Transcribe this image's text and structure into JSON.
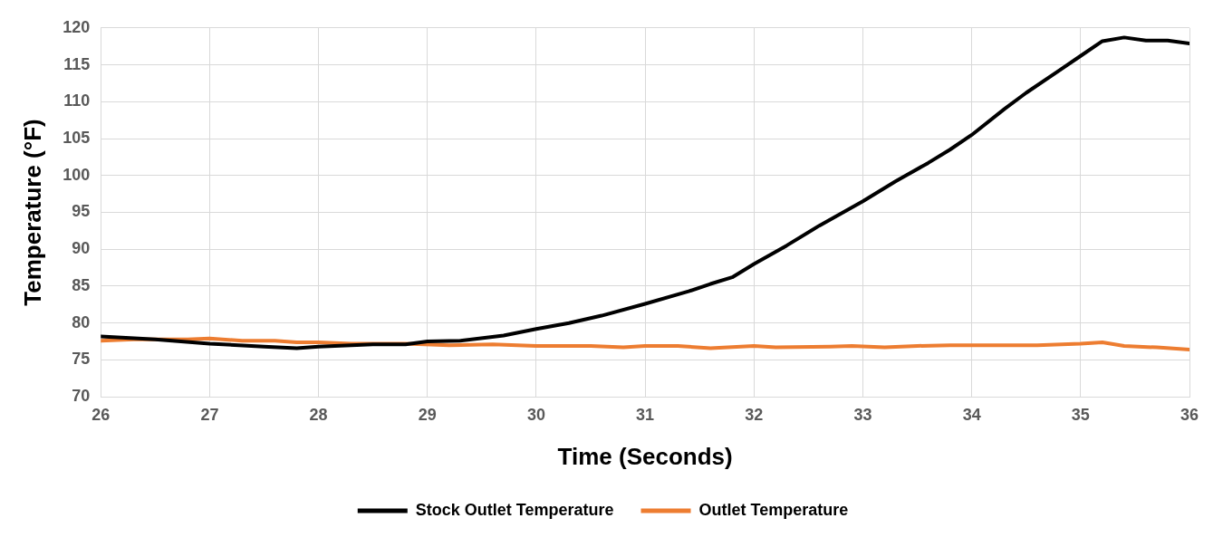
{
  "chart_data": {
    "type": "line",
    "xlabel": "Time (Seconds)",
    "ylabel": "Temperature (°F)",
    "xlim": [
      26,
      36
    ],
    "xticks": [
      26,
      27,
      28,
      29,
      30,
      31,
      32,
      33,
      34,
      35,
      36
    ],
    "ylim": [
      70,
      120
    ],
    "yticks": [
      70,
      75,
      80,
      85,
      90,
      95,
      100,
      105,
      110,
      115,
      120
    ],
    "grid": true,
    "legend": "bottom",
    "marker": "none",
    "line_style": "solid",
    "series": [
      {
        "name": "Stock Outlet Temperature",
        "color": "#000000",
        "x": [
          26,
          26.5,
          27,
          27.5,
          27.8,
          28,
          28.5,
          28.8,
          29,
          29.3,
          29.7,
          30,
          30.3,
          30.6,
          31,
          31.4,
          31.6,
          31.8,
          32,
          32.3,
          32.6,
          33,
          33.3,
          33.6,
          33.8,
          34,
          34.3,
          34.5,
          34.8,
          35,
          35.2,
          35.4,
          35.6,
          35.8,
          36
        ],
        "values": [
          78.2,
          77.8,
          77.2,
          76.8,
          76.6,
          76.8,
          77.1,
          77.1,
          77.5,
          77.6,
          78.3,
          79.2,
          80,
          81,
          82.6,
          84.3,
          85.3,
          86.2,
          88,
          90.5,
          93.2,
          96.5,
          99.2,
          101.7,
          103.5,
          105.5,
          109,
          111.2,
          114.2,
          116.2,
          118.2,
          118.7,
          118.3,
          118.3,
          117.9
        ]
      },
      {
        "name": "Outlet Temperature",
        "color": "#ed7d31",
        "x": [
          26,
          26.3,
          26.8,
          27,
          27.3,
          27.6,
          27.8,
          28,
          28.3,
          28.8,
          29.2,
          29.6,
          30,
          30.5,
          30.8,
          31,
          31.3,
          31.6,
          32,
          32.2,
          32.7,
          32.9,
          33.2,
          33.5,
          33.8,
          34.2,
          34.6,
          35,
          35.2,
          35.4,
          35.7,
          36
        ],
        "values": [
          77.6,
          77.8,
          77.8,
          77.9,
          77.6,
          77.6,
          77.4,
          77.4,
          77.2,
          77.2,
          77,
          77.1,
          76.9,
          76.9,
          76.7,
          76.9,
          76.9,
          76.6,
          76.9,
          76.7,
          76.8,
          76.9,
          76.7,
          76.9,
          77,
          77,
          77,
          77.2,
          77.4,
          76.9,
          76.7,
          76.4
        ]
      }
    ]
  }
}
